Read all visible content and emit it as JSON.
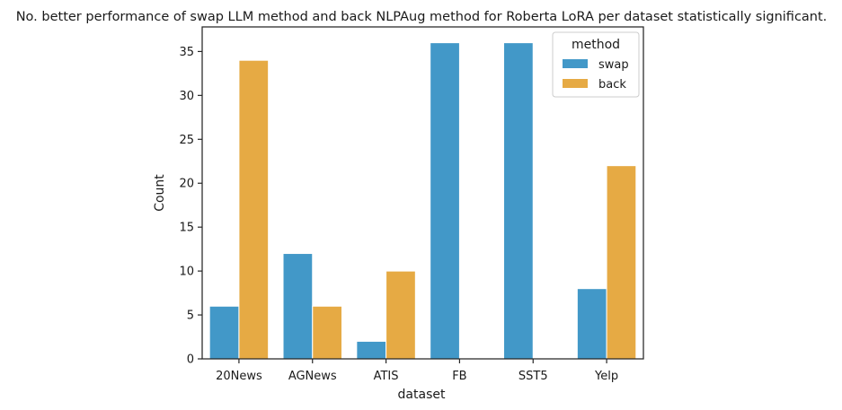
{
  "chart_data": {
    "type": "bar",
    "title": "No. better performance of swap LLM method and back NLPAug method for Roberta LoRA per dataset statistically significant.",
    "xlabel": "dataset",
    "ylabel": "Count",
    "categories": [
      "20News",
      "AGNews",
      "ATIS",
      "FB",
      "SST5",
      "Yelp"
    ],
    "series": [
      {
        "name": "swap",
        "values": [
          6,
          12,
          2,
          36,
          36,
          8
        ],
        "color": "#4298c8"
      },
      {
        "name": "back",
        "values": [
          34,
          6,
          10,
          0,
          0,
          22
        ],
        "color": "#e6aa44"
      }
    ],
    "ylim": [
      0,
      37.8
    ],
    "yticks": [
      "0",
      "5",
      "10",
      "15",
      "20",
      "25",
      "30",
      "35"
    ],
    "legend_title": "method",
    "legend_position": "top-right",
    "grid": false
  }
}
